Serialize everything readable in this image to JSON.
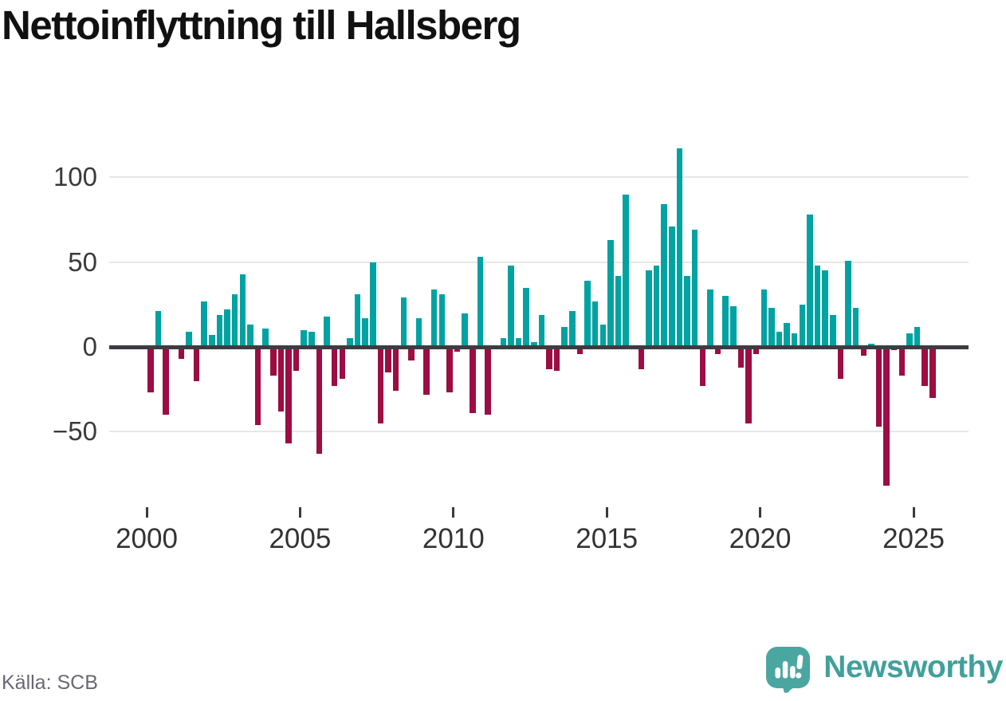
{
  "title": "Nettoinflyttning till Hallsberg",
  "footer": {
    "source": "Källa: SCB",
    "brand": "Newsworthy"
  },
  "chart_data": {
    "type": "bar",
    "title": "Nettoinflyttning till Hallsberg",
    "x_start": "2000 Q1",
    "x_frequency": "quarterly",
    "values": [
      -27,
      21,
      -40,
      0,
      -7,
      9,
      -20,
      27,
      7,
      19,
      22,
      31,
      43,
      13,
      -46,
      11,
      -17,
      -38,
      -57,
      -14,
      10,
      9,
      -63,
      18,
      -23,
      -19,
      5,
      31,
      17,
      50,
      -45,
      -15,
      -26,
      29,
      -8,
      17,
      -28,
      34,
      31,
      -27,
      -3,
      20,
      -39,
      53,
      -40,
      0,
      5,
      48,
      5,
      35,
      3,
      19,
      -13,
      -14,
      12,
      21,
      -4,
      39,
      27,
      13,
      63,
      42,
      90,
      0,
      -13,
      45,
      48,
      84,
      71,
      117,
      42,
      69,
      -23,
      34,
      -4,
      30,
      24,
      -12,
      -45,
      -4,
      34,
      23,
      9,
      14,
      8,
      25,
      78,
      48,
      45,
      19,
      -19,
      51,
      23,
      -5,
      2,
      -47,
      -82,
      -2,
      -17,
      8,
      12,
      -23,
      -30
    ],
    "y_ticks": [
      {
        "value": 100,
        "label": "100"
      },
      {
        "value": 50,
        "label": "50"
      },
      {
        "value": 0,
        "label": "0"
      },
      {
        "value": -50,
        "label": "−50"
      }
    ],
    "x_ticks": [
      {
        "year": 2000,
        "label": "2000"
      },
      {
        "year": 2005,
        "label": "2005"
      },
      {
        "year": 2010,
        "label": "2010"
      },
      {
        "year": 2015,
        "label": "2015"
      },
      {
        "year": 2020,
        "label": "2020"
      },
      {
        "year": 2025,
        "label": "2025"
      }
    ],
    "ylim": [
      -90,
      120
    ],
    "grid": true,
    "legend": "none",
    "colors": {
      "positive": "#00a2a2",
      "negative": "#9c0d43"
    }
  }
}
